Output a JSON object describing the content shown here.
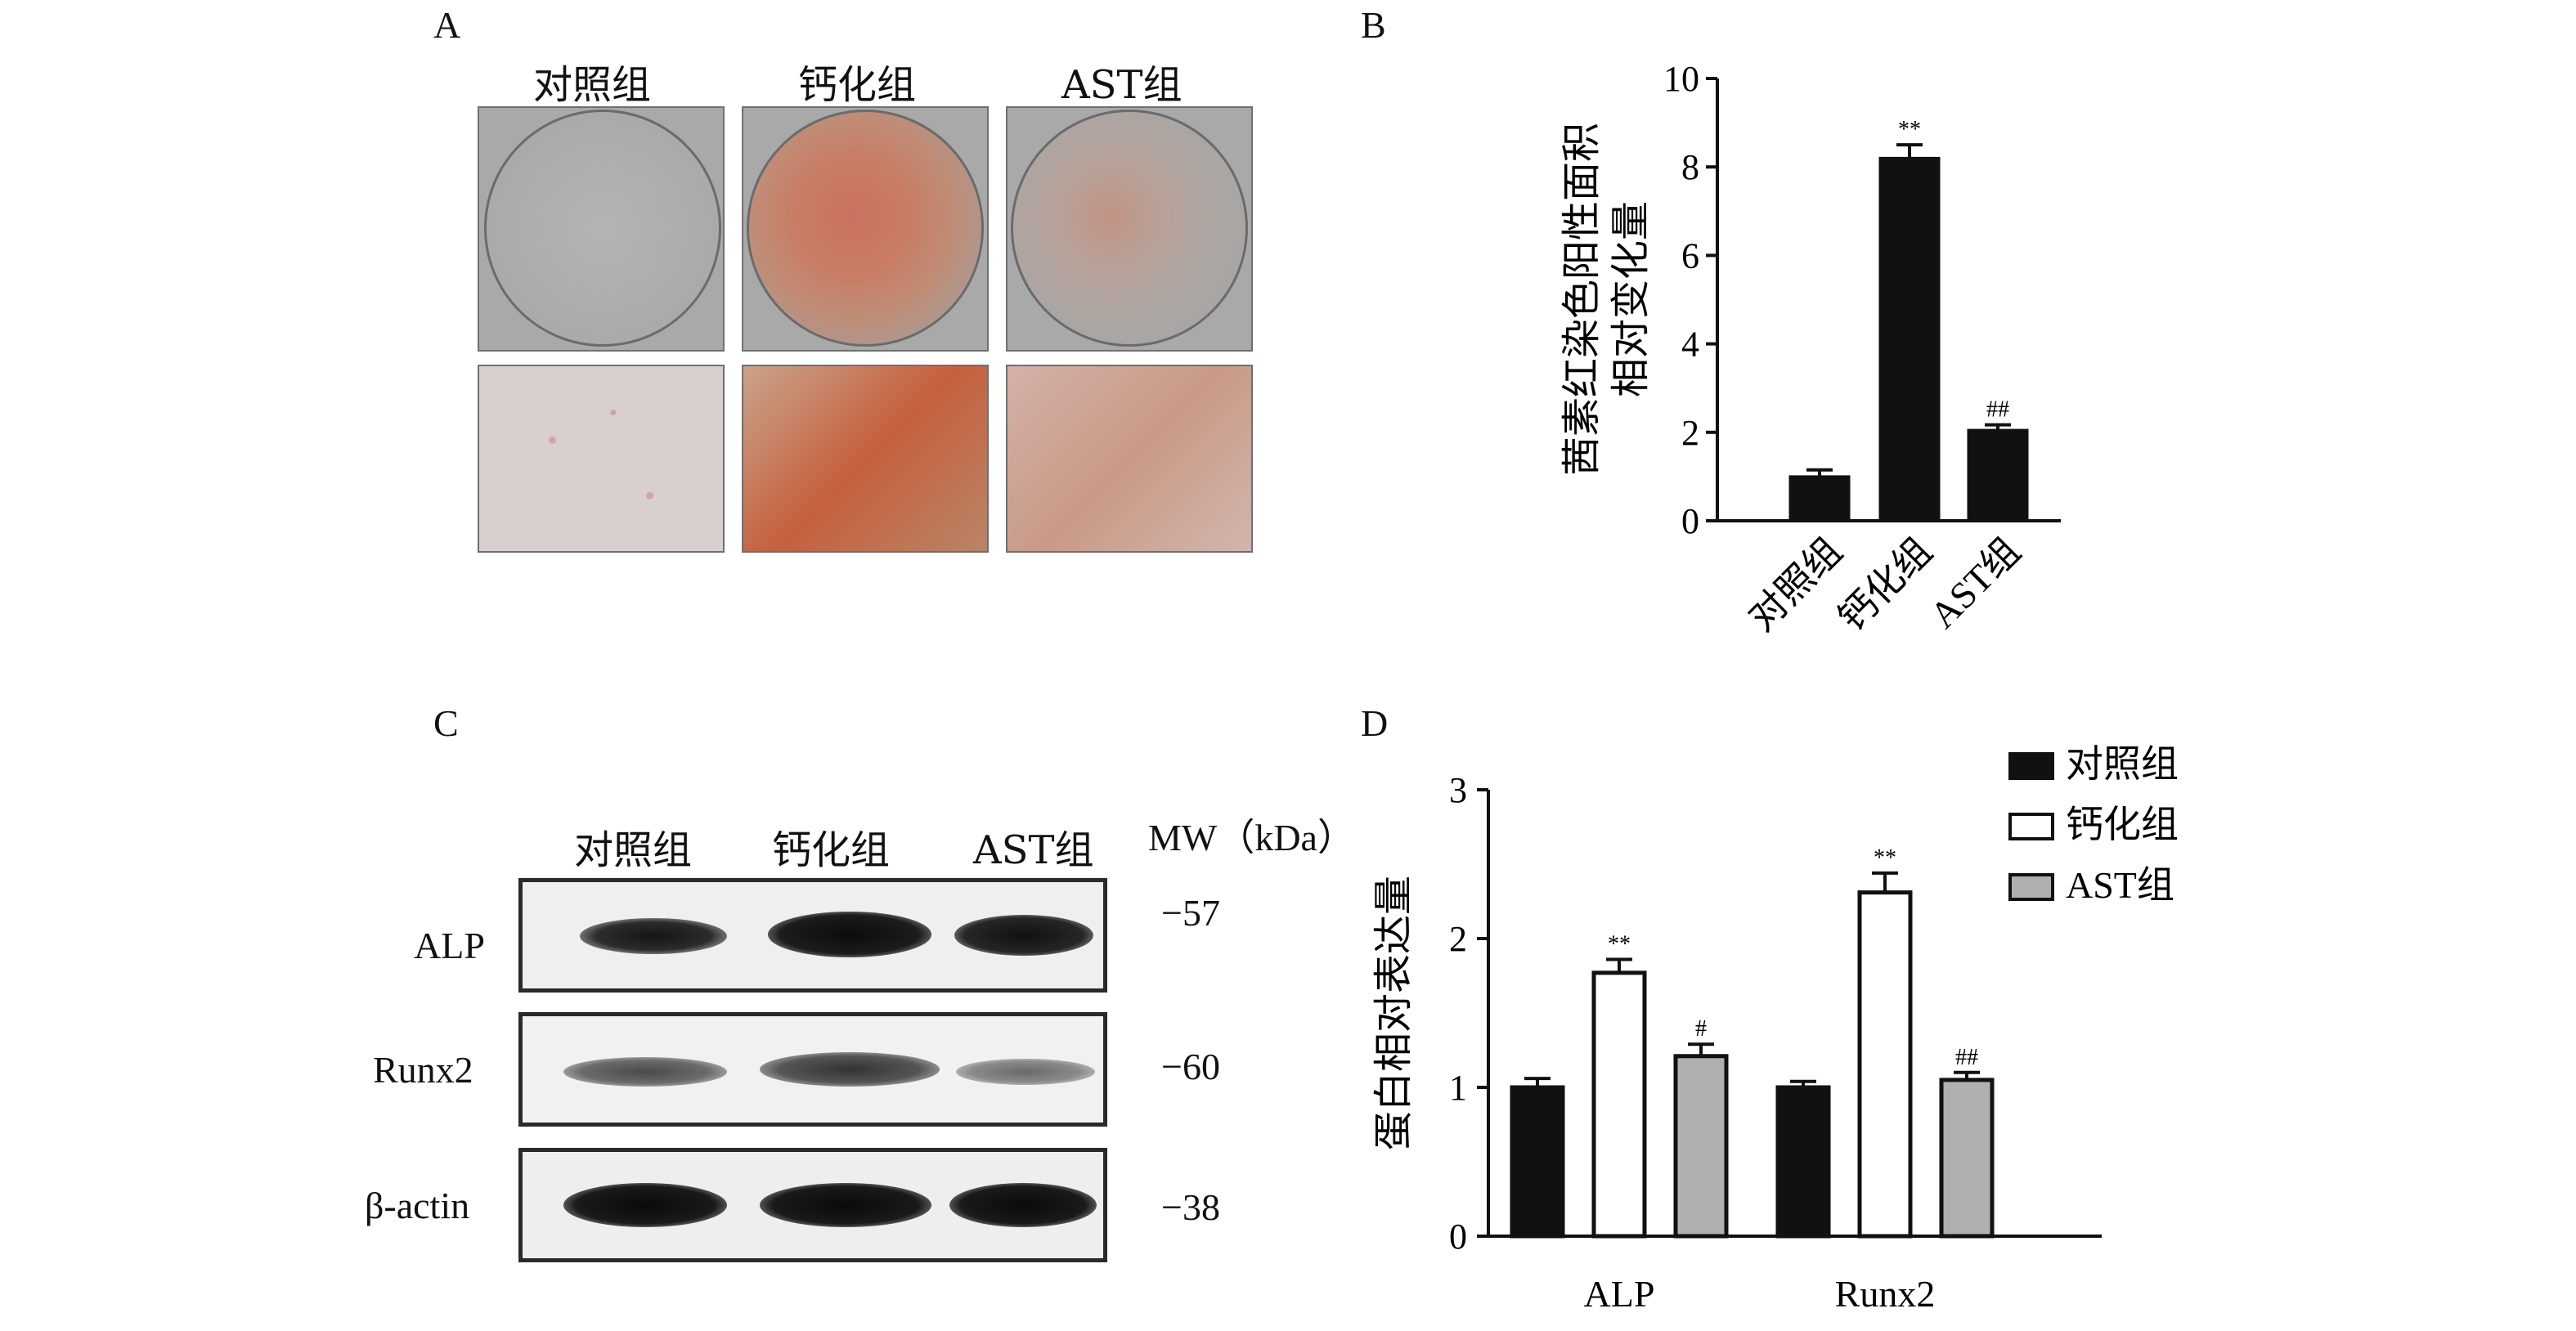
{
  "panels": {
    "a": "A",
    "b": "B",
    "c": "C",
    "d": "D"
  },
  "groups": [
    "对照组",
    "钙化组",
    "AST组"
  ],
  "western_blot": {
    "mw_label": "MW（kDa）",
    "rows": [
      {
        "protein": "ALP",
        "mw": "−57"
      },
      {
        "protein": "Runx2",
        "mw": "−60"
      },
      {
        "protein": "β-actin",
        "mw": "−38"
      }
    ]
  },
  "colors": {
    "control": "#111111",
    "calcified": "#ffffff",
    "ast": "#b0b0b0",
    "axis": "#111111"
  },
  "chart_data": [
    {
      "type": "bar",
      "panel": "B",
      "categories": [
        "对照组",
        "钙化组",
        "AST组"
      ],
      "values": [
        1.0,
        8.2,
        2.05
      ],
      "errors": [
        0.15,
        0.3,
        0.12
      ],
      "annotations": [
        "",
        "**",
        "##"
      ],
      "ylabel_line1": "茜素红染色阳性面积",
      "ylabel_line2": "相对变化量",
      "ylim": [
        0,
        10
      ],
      "yticks": [
        "0",
        "2",
        "4",
        "6",
        "8",
        "10"
      ],
      "grid": false
    },
    {
      "type": "bar",
      "panel": "D",
      "categories": [
        "ALP",
        "Runx2"
      ],
      "series": [
        {
          "name": "对照组",
          "values": [
            1.0,
            1.0
          ],
          "errors": [
            0.06,
            0.04
          ],
          "annotations": [
            "",
            ""
          ]
        },
        {
          "name": "钙化组",
          "values": [
            1.77,
            2.31
          ],
          "errors": [
            0.09,
            0.13
          ],
          "annotations": [
            "**",
            "**"
          ]
        },
        {
          "name": "AST组",
          "values": [
            1.21,
            1.05
          ],
          "errors": [
            0.08,
            0.05
          ],
          "annotations": [
            "#",
            "##"
          ]
        }
      ],
      "ylabel": "蛋白相对表达量",
      "ylim": [
        0,
        3
      ],
      "yticks": [
        "0",
        "1",
        "2",
        "3"
      ],
      "legend": "top-right",
      "grid": false
    }
  ]
}
